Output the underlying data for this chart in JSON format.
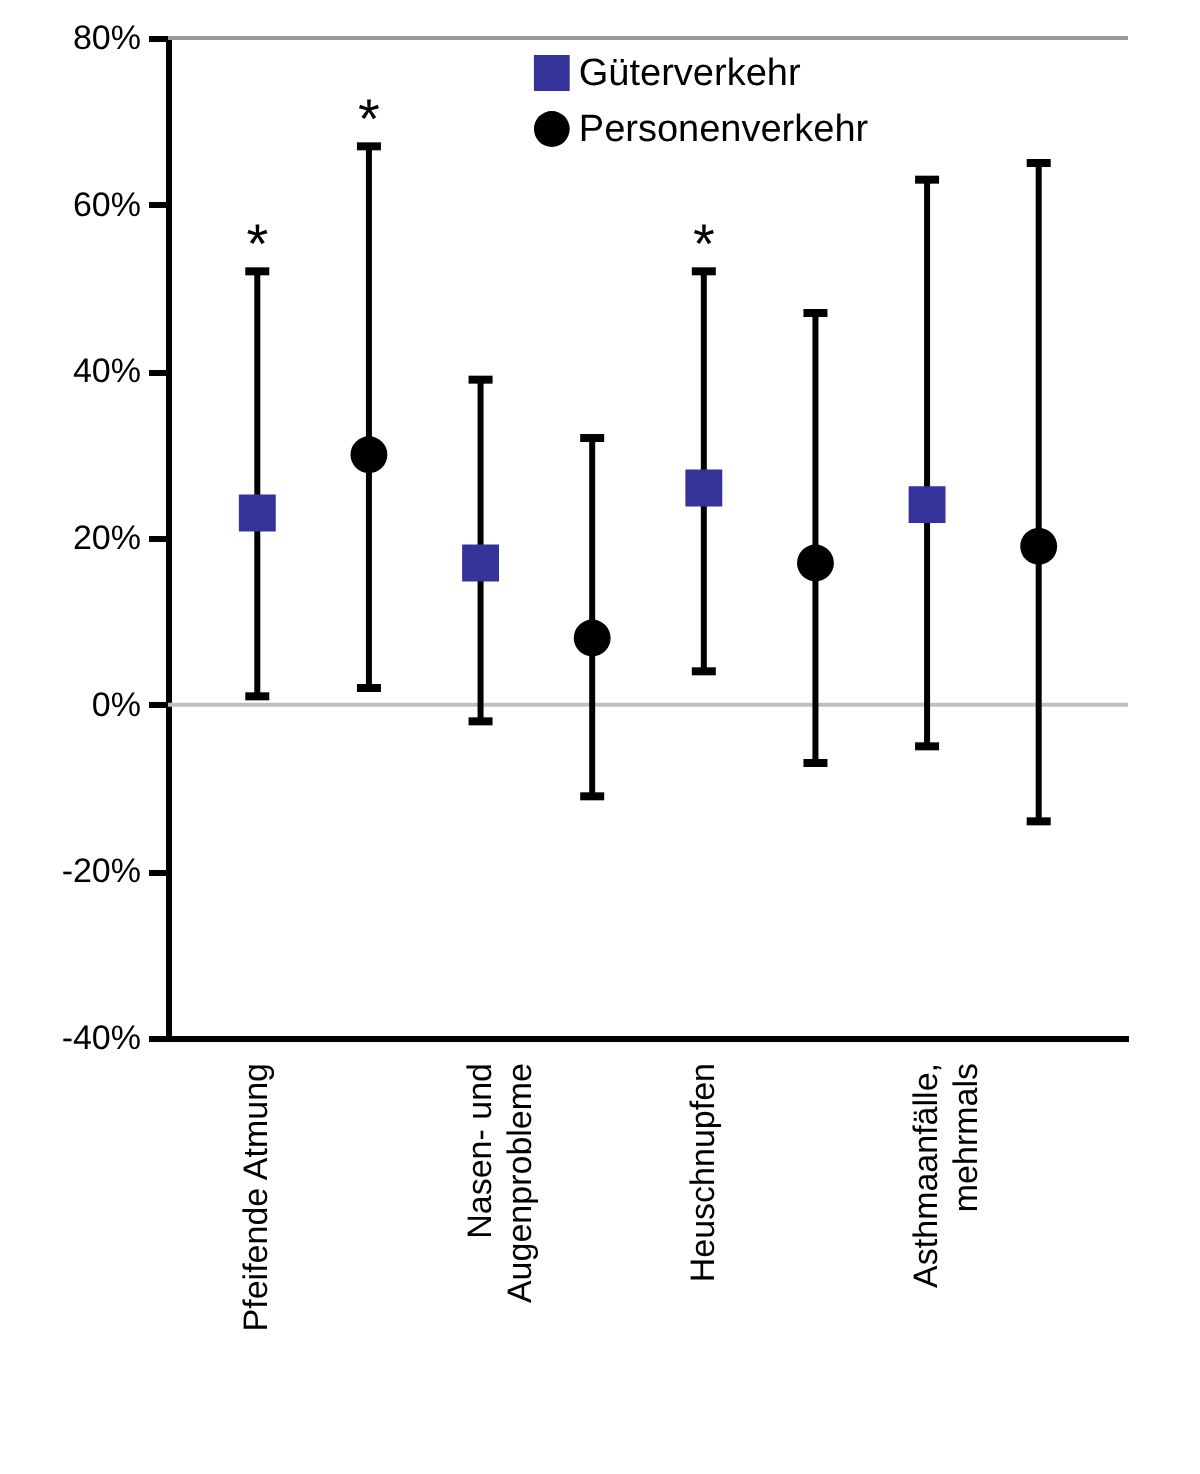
{
  "chart_data": {
    "type": "scatter",
    "categories": [
      "Pfeifende Atmung",
      null,
      "Nasen- und\nAugenprobleme",
      null,
      "Heuschnupfen",
      null,
      "Asthmaanfälle,\nmehrmals",
      null
    ],
    "series": [
      {
        "name": "Güterverkehr",
        "color": "#333399",
        "marker": "square",
        "values": [
          23,
          null,
          17,
          null,
          26,
          null,
          24,
          null
        ],
        "errors": [
          [
            1,
            52
          ],
          null,
          [
            -2,
            39
          ],
          null,
          [
            4,
            52
          ],
          null,
          [
            -5,
            63
          ],
          null
        ]
      },
      {
        "name": "Personenverkehr",
        "color": "#000000",
        "marker": "circle",
        "values": [
          null,
          30,
          null,
          8,
          null,
          17,
          null,
          19
        ],
        "errors": [
          null,
          [
            2,
            67
          ],
          null,
          [
            -11,
            32
          ],
          null,
          [
            -7,
            47
          ],
          null,
          [
            -14,
            65
          ]
        ]
      }
    ],
    "ylim": [
      -40,
      80
    ],
    "yticks": [
      {
        "value": -40,
        "label": "-40%"
      },
      {
        "value": -20,
        "label": "-20%"
      },
      {
        "value": 0,
        "label": "0%"
      },
      {
        "value": 20,
        "label": "20%"
      },
      {
        "value": 40,
        "label": "40%"
      },
      {
        "value": 60,
        "label": "60%"
      },
      {
        "value": 80,
        "label": "80%"
      }
    ],
    "ref_lines": [
      {
        "axis": "y",
        "value": 0,
        "color": "#c0c0c0"
      },
      {
        "axis": "y",
        "value": 80,
        "color": "#999999"
      }
    ],
    "annotations": [
      {
        "text": "*",
        "x": "Pfeifende Atmung",
        "y": 52
      },
      {
        "text": "*",
        "y": 67
      },
      {
        "text": "*",
        "x": "Heuschnupfen",
        "y": 52
      }
    ],
    "legend": "top"
  }
}
